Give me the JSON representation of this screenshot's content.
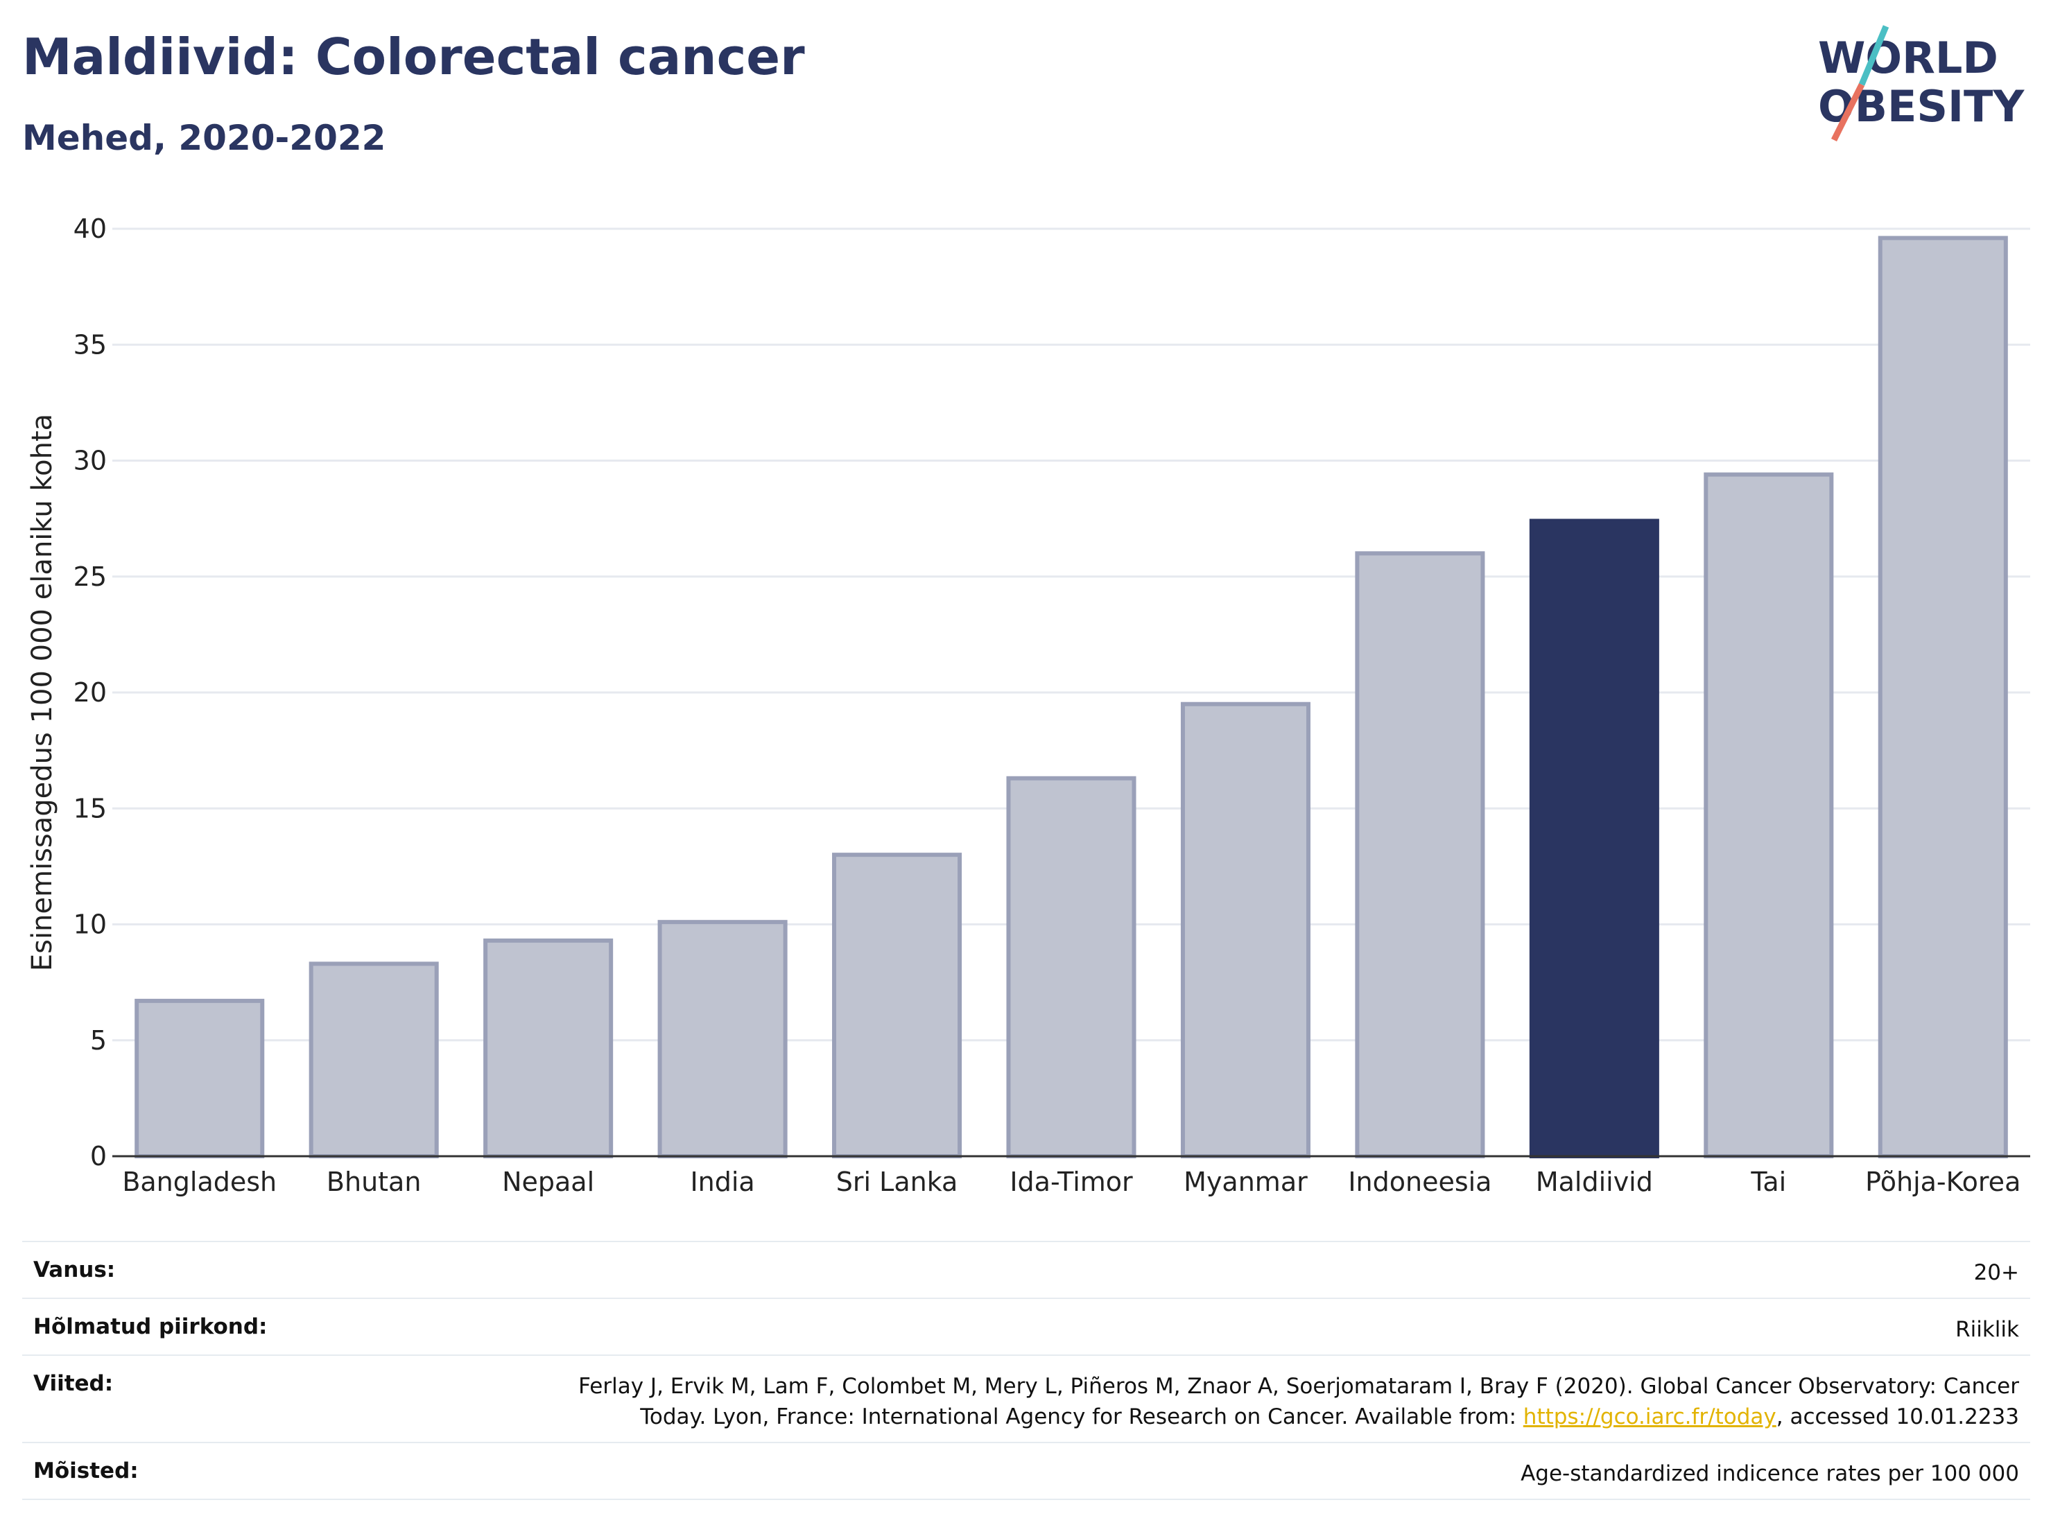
{
  "header": {
    "title": "Maldiivid: Colorectal cancer",
    "subtitle": "Mehed, 2020-2022"
  },
  "logo": {
    "line1": "WORLD",
    "line2": "OBESITY",
    "colors": {
      "text": "#2a3561",
      "slash_top": "#4bbfc4",
      "slash_bottom": "#e8725f"
    }
  },
  "chart_data": {
    "type": "bar",
    "categories": [
      "Bangladesh",
      "Bhutan",
      "Nepaal",
      "India",
      "Sri Lanka",
      "Ida-Timor",
      "Myanmar",
      "Indoneesia",
      "Maldiivid",
      "Tai",
      "Põhja-Korea"
    ],
    "values": [
      6.7,
      8.3,
      9.3,
      10.1,
      13.0,
      16.3,
      19.5,
      26.0,
      27.4,
      29.4,
      39.6
    ],
    "highlight": "Maldiivid",
    "ylabel": "Esinemissagedus 100 000 elaniku kohta",
    "xlabel": "",
    "ylim": [
      0,
      40
    ],
    "yticks": [
      0,
      5,
      10,
      15,
      20,
      25,
      30,
      35,
      40
    ],
    "grid": true,
    "colors": {
      "bar": "#bfc3d0",
      "bar_edge": "#9aa0b8",
      "highlight": "#2a3561",
      "grid": "#e6e9ef",
      "axis": "#333333"
    }
  },
  "info": {
    "age_label": "Vanus:",
    "age_value": "20+",
    "region_label": "Hõlmatud piirkond:",
    "region_value": "Riiklik",
    "refs_label": "Viited:",
    "refs_line1": "Ferlay J, Ervik M, Lam F, Colombet M, Mery L, Piñeros M, Znaor A, Soerjomataram I, Bray F (2020). Global Cancer Observatory: Cancer",
    "refs_line2_pre": "Today. Lyon, France: International Agency for Research on Cancer. Available from: ",
    "refs_link": "https://gco.iarc.fr/today",
    "refs_line2_post": ", accessed 10.01.2233",
    "def_label": "Mõisted:",
    "def_value": "Age-standardized indicence rates per 100 000"
  }
}
